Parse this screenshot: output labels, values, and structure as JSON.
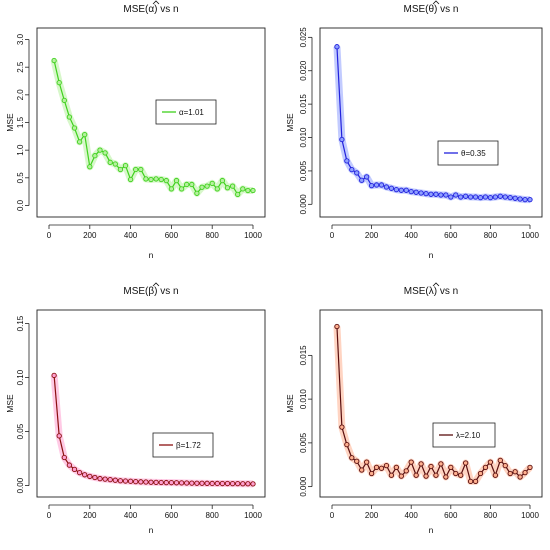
{
  "chart_data": [
    {
      "type": "line",
      "title_fn": "MSE(",
      "title_param": "α",
      "title_rest": ") vs n",
      "xlabel": "n",
      "ylabel": "MSE",
      "xlim": [
        0,
        1000
      ],
      "ylim": [
        -0.1,
        3.1
      ],
      "xticks": [
        0,
        200,
        400,
        600,
        800,
        1000
      ],
      "xtick_labels": [
        "0",
        "200",
        "400",
        "600",
        "800",
        "1000"
      ],
      "yticks": [
        0,
        0.5,
        1,
        1.5,
        2,
        2.5,
        3
      ],
      "ytick_labels": [
        "0.0",
        "0.5",
        "1.0",
        "1.5",
        "2.0",
        "2.5",
        "3.0"
      ],
      "legend": "α=1.01",
      "legend_position": "center-right",
      "color": "#3fd11d",
      "band_color": "#b6f09f",
      "series": [
        {
          "x": [
            25,
            50,
            75,
            100,
            125,
            150,
            175,
            200,
            225,
            250,
            275,
            300,
            325,
            350,
            375,
            400,
            425,
            450,
            475,
            500,
            525,
            550,
            575,
            600,
            625,
            650,
            675,
            700,
            725,
            750,
            775,
            800,
            825,
            850,
            875,
            900,
            925,
            950,
            975,
            1000
          ],
          "y": [
            2.62,
            2.22,
            1.9,
            1.6,
            1.4,
            1.15,
            1.28,
            0.7,
            0.9,
            1.0,
            0.95,
            0.78,
            0.75,
            0.65,
            0.72,
            0.47,
            0.65,
            0.65,
            0.48,
            0.47,
            0.48,
            0.47,
            0.45,
            0.3,
            0.45,
            0.3,
            0.38,
            0.38,
            0.22,
            0.33,
            0.35,
            0.4,
            0.3,
            0.45,
            0.32,
            0.35,
            0.2,
            0.3,
            0.27,
            0.27
          ]
        }
      ]
    },
    {
      "type": "line",
      "title_fn": "MSE(",
      "title_param": "θ",
      "title_rest": ") vs n",
      "xlabel": "n",
      "ylabel": "MSE",
      "xlim": [
        0,
        1000
      ],
      "ylim": [
        -0.001,
        0.0255
      ],
      "xticks": [
        0,
        200,
        400,
        600,
        800,
        1000
      ],
      "xtick_labels": [
        "0",
        "200",
        "400",
        "600",
        "800",
        "1000"
      ],
      "yticks": [
        0,
        0.005,
        0.01,
        0.015,
        0.02,
        0.025
      ],
      "ytick_labels": [
        "0.000",
        "0.005",
        "0.010",
        "0.015",
        "0.020",
        "0.025"
      ],
      "legend": "θ=0.35",
      "legend_position": "center-right",
      "color": "#2222dd",
      "band_color": "#8fa0ff",
      "series": [
        {
          "x": [
            25,
            50,
            75,
            100,
            125,
            150,
            175,
            200,
            225,
            250,
            275,
            300,
            325,
            350,
            375,
            400,
            425,
            450,
            475,
            500,
            525,
            550,
            575,
            600,
            625,
            650,
            675,
            700,
            725,
            750,
            775,
            800,
            825,
            850,
            875,
            900,
            925,
            950,
            975,
            1000
          ],
          "y": [
            0.0236,
            0.0097,
            0.0065,
            0.0052,
            0.0047,
            0.0036,
            0.0041,
            0.0028,
            0.0029,
            0.0029,
            0.0026,
            0.0024,
            0.0022,
            0.0021,
            0.0021,
            0.0019,
            0.0018,
            0.0017,
            0.0016,
            0.0015,
            0.0015,
            0.0014,
            0.0014,
            0.0011,
            0.0014,
            0.0011,
            0.0012,
            0.0011,
            0.0011,
            0.001,
            0.0011,
            0.001,
            0.0011,
            0.0012,
            0.0011,
            0.001,
            0.0009,
            0.0008,
            0.0007,
            0.0007
          ]
        }
      ]
    },
    {
      "type": "line",
      "title_fn": "MSE(",
      "title_param": "β",
      "title_rest": ") vs n",
      "xlabel": "n",
      "ylabel": "MSE",
      "xlim": [
        0,
        1000
      ],
      "ylim": [
        -0.005,
        0.157
      ],
      "xticks": [
        0,
        200,
        400,
        600,
        800,
        1000
      ],
      "xtick_labels": [
        "0",
        "200",
        "400",
        "600",
        "800",
        "1000"
      ],
      "yticks": [
        0,
        0.05,
        0.1,
        0.15
      ],
      "ytick_labels": [
        "0.00",
        "0.05",
        "0.10",
        "0.15"
      ],
      "legend": "β=1.72",
      "legend_position": "center-right",
      "color": "#8b1010",
      "band_color": "#ff9fd0",
      "series": [
        {
          "x": [
            25,
            50,
            75,
            100,
            125,
            150,
            175,
            200,
            225,
            250,
            275,
            300,
            325,
            350,
            375,
            400,
            425,
            450,
            475,
            500,
            525,
            550,
            575,
            600,
            625,
            650,
            675,
            700,
            725,
            750,
            775,
            800,
            825,
            850,
            875,
            900,
            925,
            950,
            975,
            1000
          ],
          "y": [
            0.102,
            0.046,
            0.026,
            0.019,
            0.015,
            0.012,
            0.01,
            0.0085,
            0.0075,
            0.0065,
            0.006,
            0.0055,
            0.005,
            0.0045,
            0.0042,
            0.004,
            0.0037,
            0.0035,
            0.0033,
            0.0031,
            0.003,
            0.0029,
            0.0028,
            0.0027,
            0.0026,
            0.0025,
            0.0024,
            0.0023,
            0.0022,
            0.0022,
            0.0021,
            0.002,
            0.002,
            0.0019,
            0.0019,
            0.0018,
            0.0018,
            0.0017,
            0.0017,
            0.0016
          ]
        }
      ]
    },
    {
      "type": "line",
      "title_fn": "MSE(",
      "title_param": "λ",
      "title_rest": ") vs n",
      "xlabel": "n",
      "ylabel": "MSE",
      "xlim": [
        0,
        1000
      ],
      "ylim": [
        -0.0005,
        0.0195
      ],
      "xticks": [
        0,
        200,
        400,
        600,
        800,
        1000
      ],
      "xtick_labels": [
        "0",
        "200",
        "400",
        "600",
        "800",
        "1000"
      ],
      "yticks": [
        0,
        0.005,
        0.01,
        0.015
      ],
      "ytick_labels": [
        "0.000",
        "0.005",
        "0.010",
        "0.015"
      ],
      "legend": "λ=2.10",
      "legend_position": "center-right",
      "color": "#5a0f0f",
      "band_color": "#ffb090",
      "series": [
        {
          "x": [
            25,
            50,
            75,
            100,
            125,
            150,
            175,
            200,
            225,
            250,
            275,
            300,
            325,
            350,
            375,
            400,
            425,
            450,
            475,
            500,
            525,
            550,
            575,
            600,
            625,
            650,
            675,
            700,
            725,
            750,
            775,
            800,
            825,
            850,
            875,
            900,
            925,
            950,
            975,
            1000
          ],
          "y": [
            0.0183,
            0.0068,
            0.0048,
            0.0033,
            0.0029,
            0.0019,
            0.0028,
            0.0015,
            0.0022,
            0.0021,
            0.0024,
            0.0013,
            0.0022,
            0.0012,
            0.0018,
            0.0028,
            0.0013,
            0.0026,
            0.0012,
            0.0023,
            0.0013,
            0.0026,
            0.0011,
            0.0022,
            0.0015,
            0.0013,
            0.0027,
            0.0006,
            0.0006,
            0.0015,
            0.0022,
            0.0028,
            0.0013,
            0.003,
            0.0024,
            0.0015,
            0.0017,
            0.0011,
            0.0016,
            0.0022
          ]
        }
      ]
    }
  ]
}
